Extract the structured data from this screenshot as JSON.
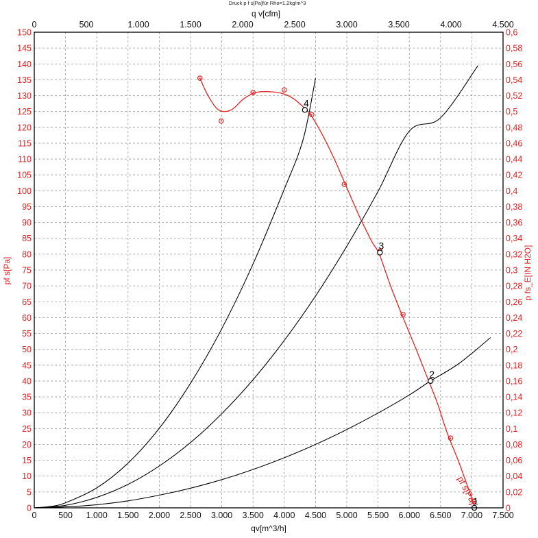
{
  "chart_data": {
    "type": "line",
    "title": "Druck p f s[Pa]für Rho=1,2kg/m^3",
    "xlabel": "qv[m^3/h]",
    "x2label": "q v[cfm]",
    "ylabel": "pf s[Pa]",
    "y2label": "p fs_E[IN H2O]",
    "curve_label": "pf s[Pa]",
    "xlim": [
      0,
      7500
    ],
    "x2lim": [
      0,
      4500
    ],
    "ylim": [
      0,
      150
    ],
    "y2lim": [
      0,
      0.6
    ],
    "grid": true,
    "x_ticks": [
      "0",
      "500",
      "1.000",
      "1.500",
      "2.000",
      "2.500",
      "3.000",
      "3.500",
      "4.000",
      "4.500",
      "5.000",
      "5.500",
      "6.000",
      "6.500",
      "7.000",
      "7.500"
    ],
    "x2_ticks": [
      "0",
      "500",
      "1.000",
      "1.500",
      "2.000",
      "2.500",
      "3.000",
      "3.500",
      "4.000",
      "4.500"
    ],
    "y_ticks": [
      "0",
      "5",
      "10",
      "15",
      "20",
      "25",
      "30",
      "35",
      "40",
      "45",
      "50",
      "55",
      "60",
      "65",
      "70",
      "75",
      "80",
      "85",
      "90",
      "95",
      "100",
      "105",
      "110",
      "115",
      "120",
      "125",
      "130",
      "135",
      "140",
      "145",
      "150"
    ],
    "y2_ticks": [
      "0",
      "0,02",
      "0,04",
      "0,06",
      "0,08",
      "0,1",
      "0,12",
      "0,14",
      "0,16",
      "0,18",
      "0,2",
      "0,22",
      "0,24",
      "0,26",
      "0,28",
      "0,3",
      "0,32",
      "0,34",
      "0,36",
      "0,38",
      "0,4",
      "0,42",
      "0,44",
      "0,46",
      "0,48",
      "0,5",
      "0,52",
      "0,54",
      "0,56",
      "0,58",
      "0,6"
    ],
    "series": [
      {
        "color": "#e32222",
        "x": [
          2650,
          2780,
          2950,
          3150,
          3350,
          3550,
          3800,
          4000,
          4150,
          4300,
          4420,
          4600,
          4800,
          5000,
          5200,
          5400,
          5520,
          5700,
          5900,
          6100,
          6300,
          6450,
          6600,
          6800,
          7000,
          7050
        ],
        "y": [
          135.5,
          130,
          125.5,
          125.5,
          129,
          131,
          131.2,
          130.5,
          129,
          126.5,
          124,
          118,
          110,
          101,
          92,
          84,
          80,
          70,
          60,
          50.5,
          40.5,
          33,
          24,
          14,
          3,
          0
        ],
        "markers_x": [
          2650,
          2990,
          3500,
          4000,
          4330,
          4440,
          4960,
          5530,
          5900,
          6340,
          6660,
          7040
        ],
        "markers_y": [
          135.5,
          122,
          131,
          131.8,
          125.5,
          124,
          102,
          81,
          61,
          40,
          22,
          2
        ]
      },
      {
        "color": "#000000",
        "x": [
          0,
          250,
          500,
          1000,
          1500,
          2000,
          2500,
          3000,
          3500,
          4000,
          4300,
          4500
        ],
        "y": [
          0,
          0.4,
          1.6,
          6.3,
          14.1,
          25.1,
          39.3,
          56.5,
          76.9,
          100.5,
          116.1,
          135.5
        ]
      },
      {
        "color": "#000000",
        "x": [
          0,
          500,
          1000,
          1500,
          2000,
          2500,
          3000,
          3500,
          4000,
          4500,
          5000,
          5500,
          6000,
          6500,
          7100
        ],
        "y": [
          0,
          0.8,
          3.3,
          7.4,
          13.2,
          20.6,
          29.7,
          40.4,
          52.8,
          66.8,
          82.5,
          99.8,
          118.8,
          123,
          139.5
        ]
      },
      {
        "color": "#000000",
        "x": [
          0,
          500,
          1000,
          1500,
          2000,
          2500,
          3000,
          3500,
          4000,
          4500,
          5000,
          5500,
          6000,
          6340,
          6800,
          7300
        ],
        "y": [
          0,
          0.3,
          1.0,
          2.2,
          4.0,
          6.2,
          8.9,
          12.1,
          15.8,
          20.0,
          24.7,
          29.9,
          35.6,
          40.0,
          45.6,
          53.7
        ]
      }
    ],
    "operating_points": [
      {
        "label": "1",
        "x": 7040,
        "y": 0
      },
      {
        "label": "2",
        "x": 6340,
        "y": 40
      },
      {
        "label": "3",
        "x": 5530,
        "y": 80.5
      },
      {
        "label": "4",
        "x": 4330,
        "y": 125.5
      }
    ]
  }
}
